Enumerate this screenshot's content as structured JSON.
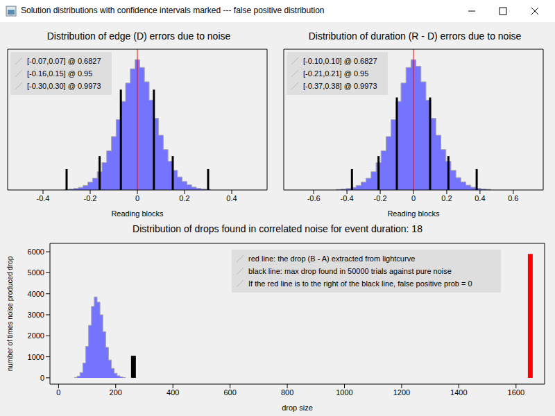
{
  "window_title": "Solution distributions with confidence intervals marked --- false positive distribution",
  "chart_data": [
    {
      "type": "histogram",
      "title": "Distribution of edge (D) errors due to noise",
      "x_label": "Reading blocks",
      "bins": [
        -0.31,
        -0.29,
        -0.27,
        -0.25,
        -0.23,
        -0.21,
        -0.19,
        -0.17,
        -0.15,
        -0.13,
        -0.11,
        -0.09,
        -0.07,
        -0.05,
        -0.03,
        -0.01,
        0.01,
        0.03,
        0.05,
        0.07,
        0.09,
        0.11,
        0.13,
        0.15,
        0.17,
        0.19,
        0.21,
        0.23,
        0.25,
        0.27,
        0.29,
        0.31
      ],
      "counts": [
        0.004,
        0.007,
        0.012,
        0.02,
        0.035,
        0.06,
        0.09,
        0.14,
        0.21,
        0.3,
        0.41,
        0.54,
        0.68,
        0.82,
        0.93,
        1.0,
        0.94,
        0.83,
        0.69,
        0.55,
        0.42,
        0.31,
        0.22,
        0.15,
        0.1,
        0.065,
        0.04,
        0.022,
        0.013,
        0.008,
        0.005
      ],
      "color": "#6666ff",
      "xlim": [
        -0.55,
        0.55
      ],
      "xticks": [
        -0.4,
        -0.2,
        0,
        0.2,
        0.4
      ],
      "ylim": [
        0,
        1.08
      ],
      "tick_labels": "x",
      "reference_line": {
        "x": 0,
        "color": "#ff0000"
      },
      "intervals": [
        {
          "low": -0.07,
          "high": 0.07,
          "from": 0,
          "to": 0.77,
          "label": "[-0.07,0.07] @ 0.6827"
        },
        {
          "low": -0.16,
          "high": 0.15,
          "from": 0,
          "to": 0.26,
          "label": "[-0.16,0.15] @ 0.95"
        },
        {
          "low": -0.3,
          "high": 0.3,
          "from": 0,
          "to": 0.16,
          "label": "[-0.30,0.30] @ 0.9973"
        }
      ]
    },
    {
      "type": "histogram",
      "title": "Distribution of duration (R - D) errors due to noise",
      "x_label": "Reading blocks",
      "bins": [
        -0.465,
        -0.435,
        -0.405,
        -0.375,
        -0.345,
        -0.315,
        -0.285,
        -0.255,
        -0.225,
        -0.195,
        -0.165,
        -0.135,
        -0.105,
        -0.075,
        -0.045,
        -0.015,
        0.015,
        0.045,
        0.075,
        0.105,
        0.135,
        0.165,
        0.195,
        0.225,
        0.255,
        0.285,
        0.315,
        0.345,
        0.375,
        0.405,
        0.435,
        0.465
      ],
      "counts": [
        0.004,
        0.007,
        0.012,
        0.02,
        0.035,
        0.06,
        0.09,
        0.14,
        0.21,
        0.3,
        0.41,
        0.54,
        0.68,
        0.82,
        0.94,
        1.0,
        0.95,
        0.83,
        0.69,
        0.55,
        0.42,
        0.31,
        0.22,
        0.15,
        0.095,
        0.062,
        0.037,
        0.021,
        0.013,
        0.008,
        0.005
      ],
      "color": "#6666ff",
      "xlim": [
        -0.78,
        0.78
      ],
      "xticks": [
        -0.6,
        -0.4,
        -0.2,
        0,
        0.2,
        0.4,
        0.6
      ],
      "ylim": [
        0,
        1.08
      ],
      "tick_labels": "x",
      "reference_line": {
        "x": 0,
        "color": "#ff0000"
      },
      "intervals": [
        {
          "low": -0.1,
          "high": 0.1,
          "from": 0,
          "to": 0.71,
          "label": "[-0.10,0.10] @ 0.6827"
        },
        {
          "low": -0.21,
          "high": 0.21,
          "from": 0,
          "to": 0.26,
          "label": "[-0.21,0.21] @ 0.95"
        },
        {
          "low": -0.37,
          "high": 0.38,
          "from": 0,
          "to": 0.16,
          "label": "[-0.37,0.38] @ 0.9973"
        }
      ]
    },
    {
      "type": "histogram",
      "title": "Distribution of drops found in correlated noise for event duration: 18",
      "x_label": "drop size",
      "y_label": "number of times noise produced drop",
      "bins": [
        55,
        65,
        75,
        85,
        95,
        105,
        115,
        125,
        135,
        145,
        155,
        165,
        175,
        185,
        195,
        205,
        215,
        225,
        235
      ],
      "counts": [
        20,
        80,
        250,
        700,
        1500,
        2500,
        3400,
        3850,
        3600,
        3000,
        2200,
        1450,
        850,
        450,
        220,
        100,
        40,
        15
      ],
      "color": "#6666ff",
      "xlim": [
        -30,
        1700
      ],
      "xticks": [
        0,
        200,
        400,
        600,
        800,
        1000,
        1200,
        1400,
        1600
      ],
      "ylim": [
        -300,
        6400
      ],
      "yticks": [
        0,
        1000,
        2000,
        3000,
        4000,
        5000,
        6000
      ],
      "lines": [
        {
          "x": 262,
          "from": 0,
          "to": 1050,
          "color": "#000000"
        },
        {
          "x": 1650,
          "from": 0,
          "to": 5900,
          "color": "#ff0000"
        }
      ],
      "legend_entries": [
        "red line: the drop (B - A) extracted from lightcurve",
        "black line: max drop found in 50000 trials against pure noise",
        "If the red line is to the right of the black line, false positive prob = 0"
      ]
    }
  ]
}
